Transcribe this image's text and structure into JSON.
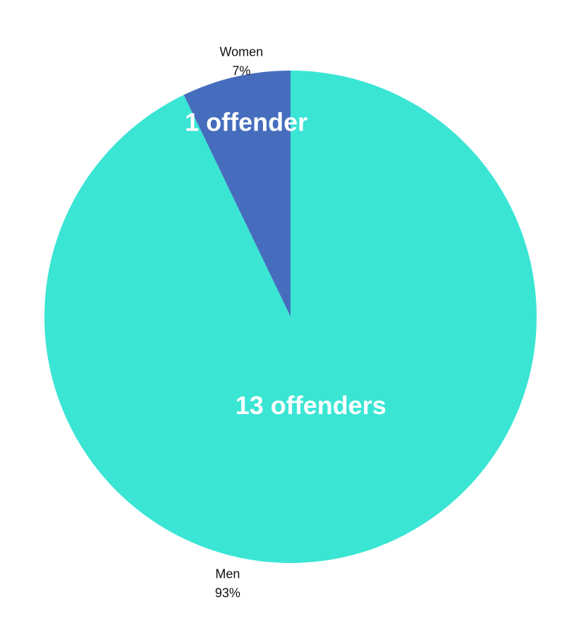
{
  "chart_data": {
    "type": "pie",
    "start": "top",
    "direction": "counterclockwise",
    "slices": [
      {
        "label": "Women",
        "percent_label": "7%",
        "value": 1,
        "value_label": "1 offender",
        "color": "#466dbd"
      },
      {
        "label": "Men",
        "percent_label": "93%",
        "value": 13,
        "value_label": "13 offenders",
        "color": "#3ae5d4"
      }
    ]
  }
}
